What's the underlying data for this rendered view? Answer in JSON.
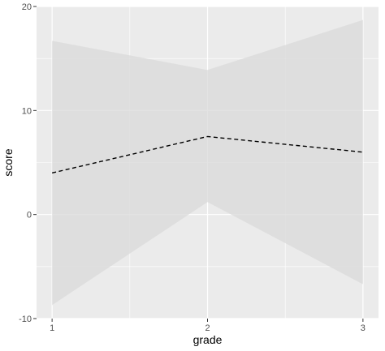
{
  "chart_data": {
    "type": "line",
    "title": "",
    "xlabel": "grade",
    "ylabel": "score",
    "x": [
      1,
      2,
      3
    ],
    "xticks": [
      "1",
      "2",
      "3"
    ],
    "xlim": [
      0.9,
      3.1
    ],
    "yticks": [
      "-10",
      "0",
      "10",
      "20"
    ],
    "ylim": [
      -10,
      20
    ],
    "grid": true,
    "series": [
      {
        "values": [
          4.0,
          7.5,
          6.0
        ],
        "lower": [
          -8.7,
          1.2,
          -6.7
        ],
        "upper": [
          16.7,
          13.9,
          18.7
        ],
        "line_style": "dashed",
        "line_color": "#000000",
        "band_color": "#d9d9d9"
      }
    ],
    "panel_color": "#ebebeb",
    "grid_color": "#ffffff"
  }
}
